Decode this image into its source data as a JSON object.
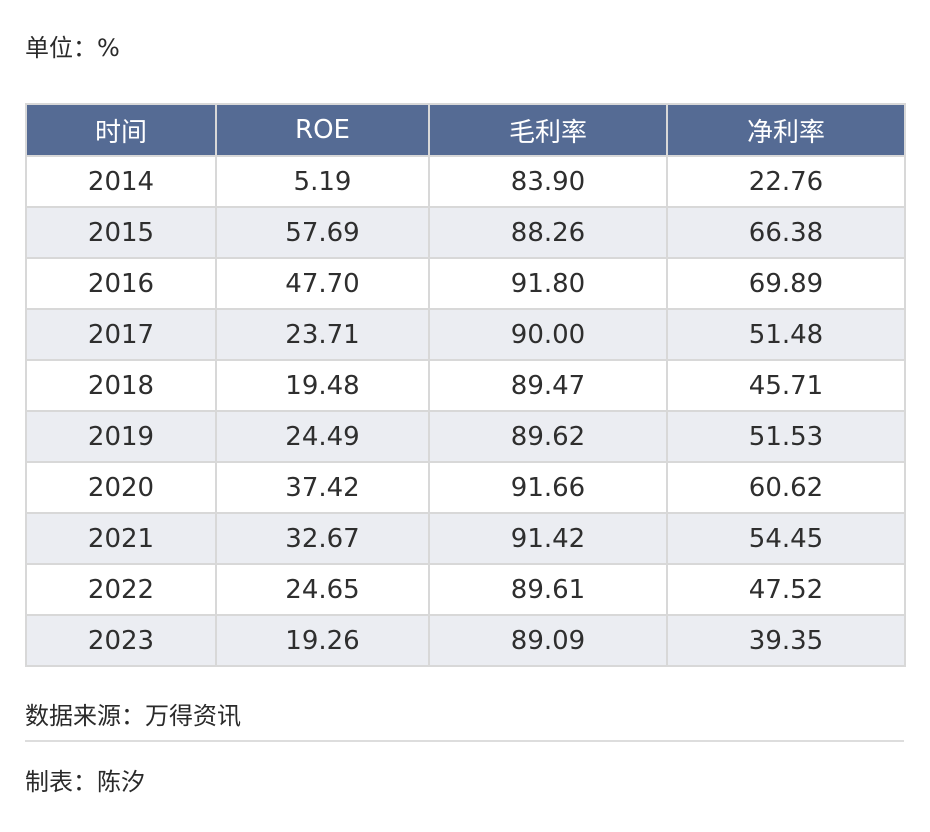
{
  "unit_label": "单位：%",
  "table": {
    "headers": [
      "时间",
      "ROE",
      "毛利率",
      "净利率"
    ],
    "rows": [
      [
        "2014",
        "5.19",
        "83.90",
        "22.76"
      ],
      [
        "2015",
        "57.69",
        "88.26",
        "66.38"
      ],
      [
        "2016",
        "47.70",
        "91.80",
        "69.89"
      ],
      [
        "2017",
        "23.71",
        "90.00",
        "51.48"
      ],
      [
        "2018",
        "19.48",
        "89.47",
        "45.71"
      ],
      [
        "2019",
        "24.49",
        "89.62",
        "51.53"
      ],
      [
        "2020",
        "37.42",
        "91.66",
        "60.62"
      ],
      [
        "2021",
        "32.67",
        "91.42",
        "54.45"
      ],
      [
        "2022",
        "24.65",
        "89.61",
        "47.52"
      ],
      [
        "2023",
        "19.26",
        "89.09",
        "39.35"
      ]
    ]
  },
  "source_label": "数据来源：万得资讯",
  "maker_label": "制表：陈汐",
  "colors": {
    "header_bg": "#556b94",
    "header_text": "#ffffff",
    "stripe_bg": "#ebedf2",
    "border": "#d8d8d8"
  }
}
